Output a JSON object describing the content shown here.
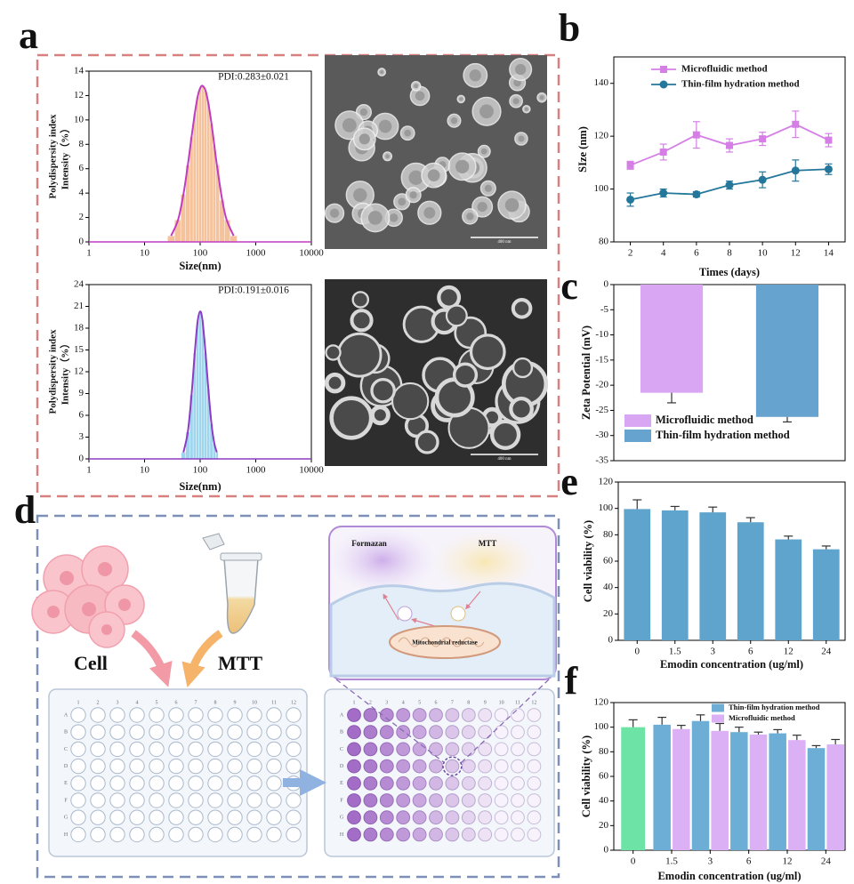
{
  "panel_labels": [
    "a",
    "b",
    "c",
    "d",
    "e",
    "f"
  ],
  "scale_bars": [
    "400 nm",
    "400 nm"
  ],
  "diagram": {
    "cell": "Cell",
    "reagent": "MTT",
    "product": "Formazan",
    "reagent_inset": "MTT",
    "enzyme": "Mitochondrial reductase",
    "plate_rows": [
      "A",
      "B",
      "C",
      "D",
      "E",
      "F",
      "G",
      "H"
    ],
    "plate_columns": [
      1,
      2,
      3,
      4,
      5,
      6,
      7,
      8,
      9,
      10,
      11,
      12
    ]
  },
  "chart_data": [
    {
      "type": "distribution",
      "annotation": "PDI:0.283±0.021",
      "x_label": "Size(nm)",
      "y_label": [
        "Polydispersity index",
        "Intensity（%）"
      ],
      "log_x": true,
      "xlim": [
        1,
        10000
      ],
      "xticks": [
        1,
        10,
        100,
        1000,
        10000
      ],
      "ylim": [
        0,
        14
      ],
      "yticks": [
        0,
        2,
        4,
        6,
        8,
        10,
        12,
        14
      ],
      "bar_color": "#f6c29c",
      "line_color": "#c03cc0",
      "x": [
        30,
        40,
        50,
        60,
        70,
        80,
        90,
        100,
        110,
        125,
        140,
        160,
        180,
        200,
        250,
        300,
        400
      ],
      "values": [
        0.5,
        1.8,
        3.9,
        6.3,
        8.6,
        10.5,
        11.9,
        12.6,
        12.8,
        12.4,
        11.4,
        9.7,
        7.9,
        6.3,
        3.4,
        1.8,
        0.5
      ]
    },
    {
      "type": "distribution",
      "annotation": "PDI:0.191±0.016",
      "x_label": "Size(nm)",
      "y_label": [
        "Polydispersity index",
        "Intensity（%）"
      ],
      "log_x": true,
      "xlim": [
        1,
        10000
      ],
      "xticks": [
        1,
        10,
        100,
        1000,
        10000
      ],
      "ylim": [
        0,
        24
      ],
      "yticks": [
        0,
        3,
        6,
        9,
        12,
        15,
        18,
        21,
        24
      ],
      "bar_color": "#9fd6ee",
      "line_color": "#8c3cc4",
      "x": [
        50,
        60,
        70,
        80,
        90,
        100,
        110,
        125,
        140,
        160,
        180,
        200
      ],
      "values": [
        0.9,
        3.7,
        8.8,
        14.6,
        18.9,
        20.3,
        19.1,
        14.6,
        9.7,
        4.8,
        2.1,
        0.9
      ]
    },
    {
      "type": "line",
      "x_label": "Times (days)",
      "y_label": "SIze (nm)",
      "x": [
        2,
        4,
        6,
        8,
        10,
        12,
        14
      ],
      "xlim": [
        1,
        15
      ],
      "xticks": [
        2,
        4,
        6,
        8,
        10,
        12,
        14
      ],
      "ylim": [
        80,
        150
      ],
      "yticks": [
        80,
        100,
        120,
        140
      ],
      "legend": "upper left",
      "series": [
        {
          "name": "Microfluidic method",
          "color": "#d57fe6",
          "marker": "square",
          "values": [
            109,
            114,
            120.5,
            116.5,
            119,
            124.5,
            118.5
          ],
          "errors": [
            1.5,
            3,
            5,
            2.5,
            2.5,
            5,
            2.5
          ]
        },
        {
          "name": "Thin-film hydration method",
          "color": "#24769a",
          "marker": "circle",
          "values": [
            96,
            98.5,
            98,
            101.5,
            103.5,
            107,
            107.5
          ],
          "errors": [
            2.5,
            1.5,
            1,
            1.5,
            3,
            4,
            2
          ]
        }
      ]
    },
    {
      "type": "bar",
      "y_label": "Zeta Potential (mV)",
      "categories": [
        null
      ],
      "ylim": [
        -35,
        0
      ],
      "yticks": [
        0,
        -5,
        -10,
        -15,
        -20,
        -25,
        -30,
        -35
      ],
      "legend": "lower left",
      "series": [
        {
          "name": "Microfluidic method",
          "color": "#d9a6f3",
          "values": [
            -21.5
          ],
          "errors": [
            2
          ]
        },
        {
          "name": "Thin-film hydration method",
          "color": "#66a3cf",
          "values": [
            -26.3
          ],
          "errors": [
            1
          ]
        }
      ]
    },
    {
      "type": "bar",
      "x_label": "Emodin concentration (ug/ml)",
      "y_label": "Cell viability (%)",
      "categories": [
        "0",
        "1.5",
        "3",
        "6",
        "12",
        "24"
      ],
      "ylim": [
        0,
        120
      ],
      "yticks": [
        0,
        20,
        40,
        60,
        80,
        100,
        120
      ],
      "color": "#5fa4cc",
      "values": [
        99.5,
        98.5,
        97,
        89.5,
        76.5,
        69
      ],
      "errors": [
        7,
        3,
        4,
        3.5,
        2.5,
        2.5
      ]
    },
    {
      "type": "bar",
      "x_label": "Emodin concentration (ug/ml)",
      "y_label": "Cell viability (%)",
      "categories": [
        "0",
        "1.5",
        "3",
        "6",
        "12",
        "24"
      ],
      "ylim": [
        0,
        120
      ],
      "yticks": [
        0,
        20,
        40,
        60,
        80,
        100,
        120
      ],
      "legend": "upper right",
      "series": [
        {
          "color": "#6de3a5",
          "values": [
            100,
            null,
            null,
            null,
            null,
            null
          ],
          "errors": [
            6,
            null,
            null,
            null,
            null,
            null
          ]
        },
        {
          "name": "Thin-film hydration method",
          "color": "#6caed6",
          "values": [
            null,
            102,
            105,
            96,
            95,
            83
          ],
          "errors": [
            null,
            6,
            5,
            4,
            3,
            2
          ]
        },
        {
          "name": "Microfluidic method",
          "color": "#dcb0f5",
          "values": [
            null,
            98.5,
            97,
            94,
            89.5,
            86
          ],
          "errors": [
            null,
            3,
            6,
            2,
            4,
            4
          ]
        }
      ]
    }
  ]
}
